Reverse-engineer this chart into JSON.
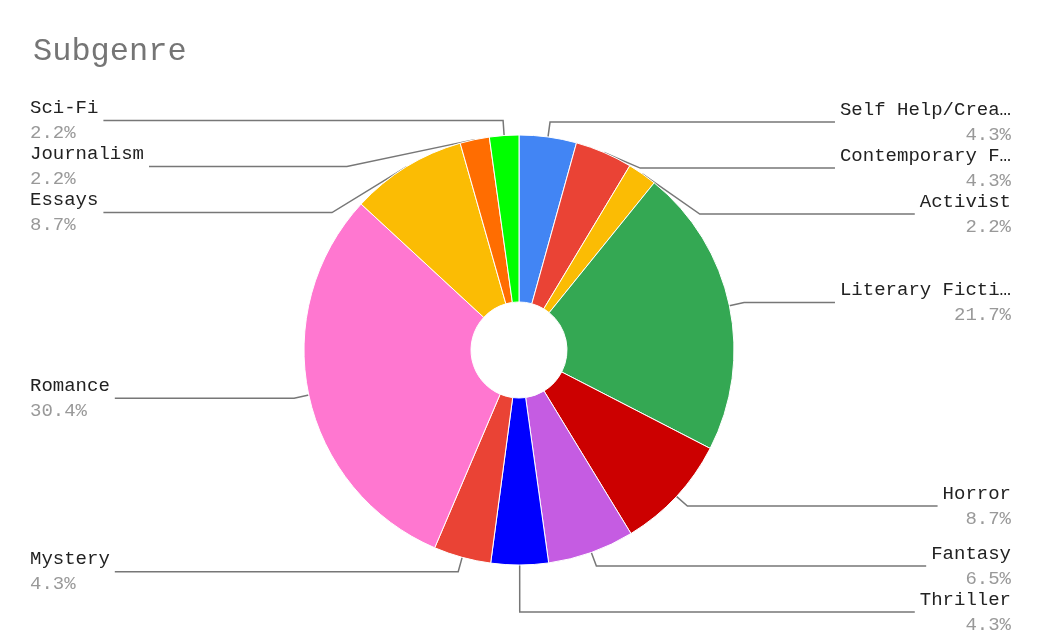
{
  "chart_data": {
    "type": "donut",
    "title": "Subgenre",
    "categories": [
      "Self Help/Crea…",
      "Contemporary F…",
      "Activist",
      "Literary Ficti…",
      "Horror",
      "Fantasy",
      "Thriller",
      "Mystery",
      "Romance",
      "Essays",
      "Journalism",
      "Sci-Fi"
    ],
    "values": [
      4.3,
      4.3,
      2.2,
      21.7,
      8.7,
      6.5,
      4.3,
      4.3,
      30.4,
      8.7,
      2.2,
      2.2
    ],
    "value_labels": [
      "4.3%",
      "4.3%",
      "2.2%",
      "21.7%",
      "8.7%",
      "6.5%",
      "4.3%",
      "4.3%",
      "30.4%",
      "8.7%",
      "2.2%",
      "2.2%"
    ],
    "colors": [
      "#4285f4",
      "#ea4335",
      "#fbbc04",
      "#34a853",
      "#cc0000",
      "#c55ce2",
      "#0000ff",
      "#ea4335",
      "#ff77d0",
      "#fbbc04",
      "#ff6d01",
      "#00ff00"
    ],
    "legend": false
  }
}
